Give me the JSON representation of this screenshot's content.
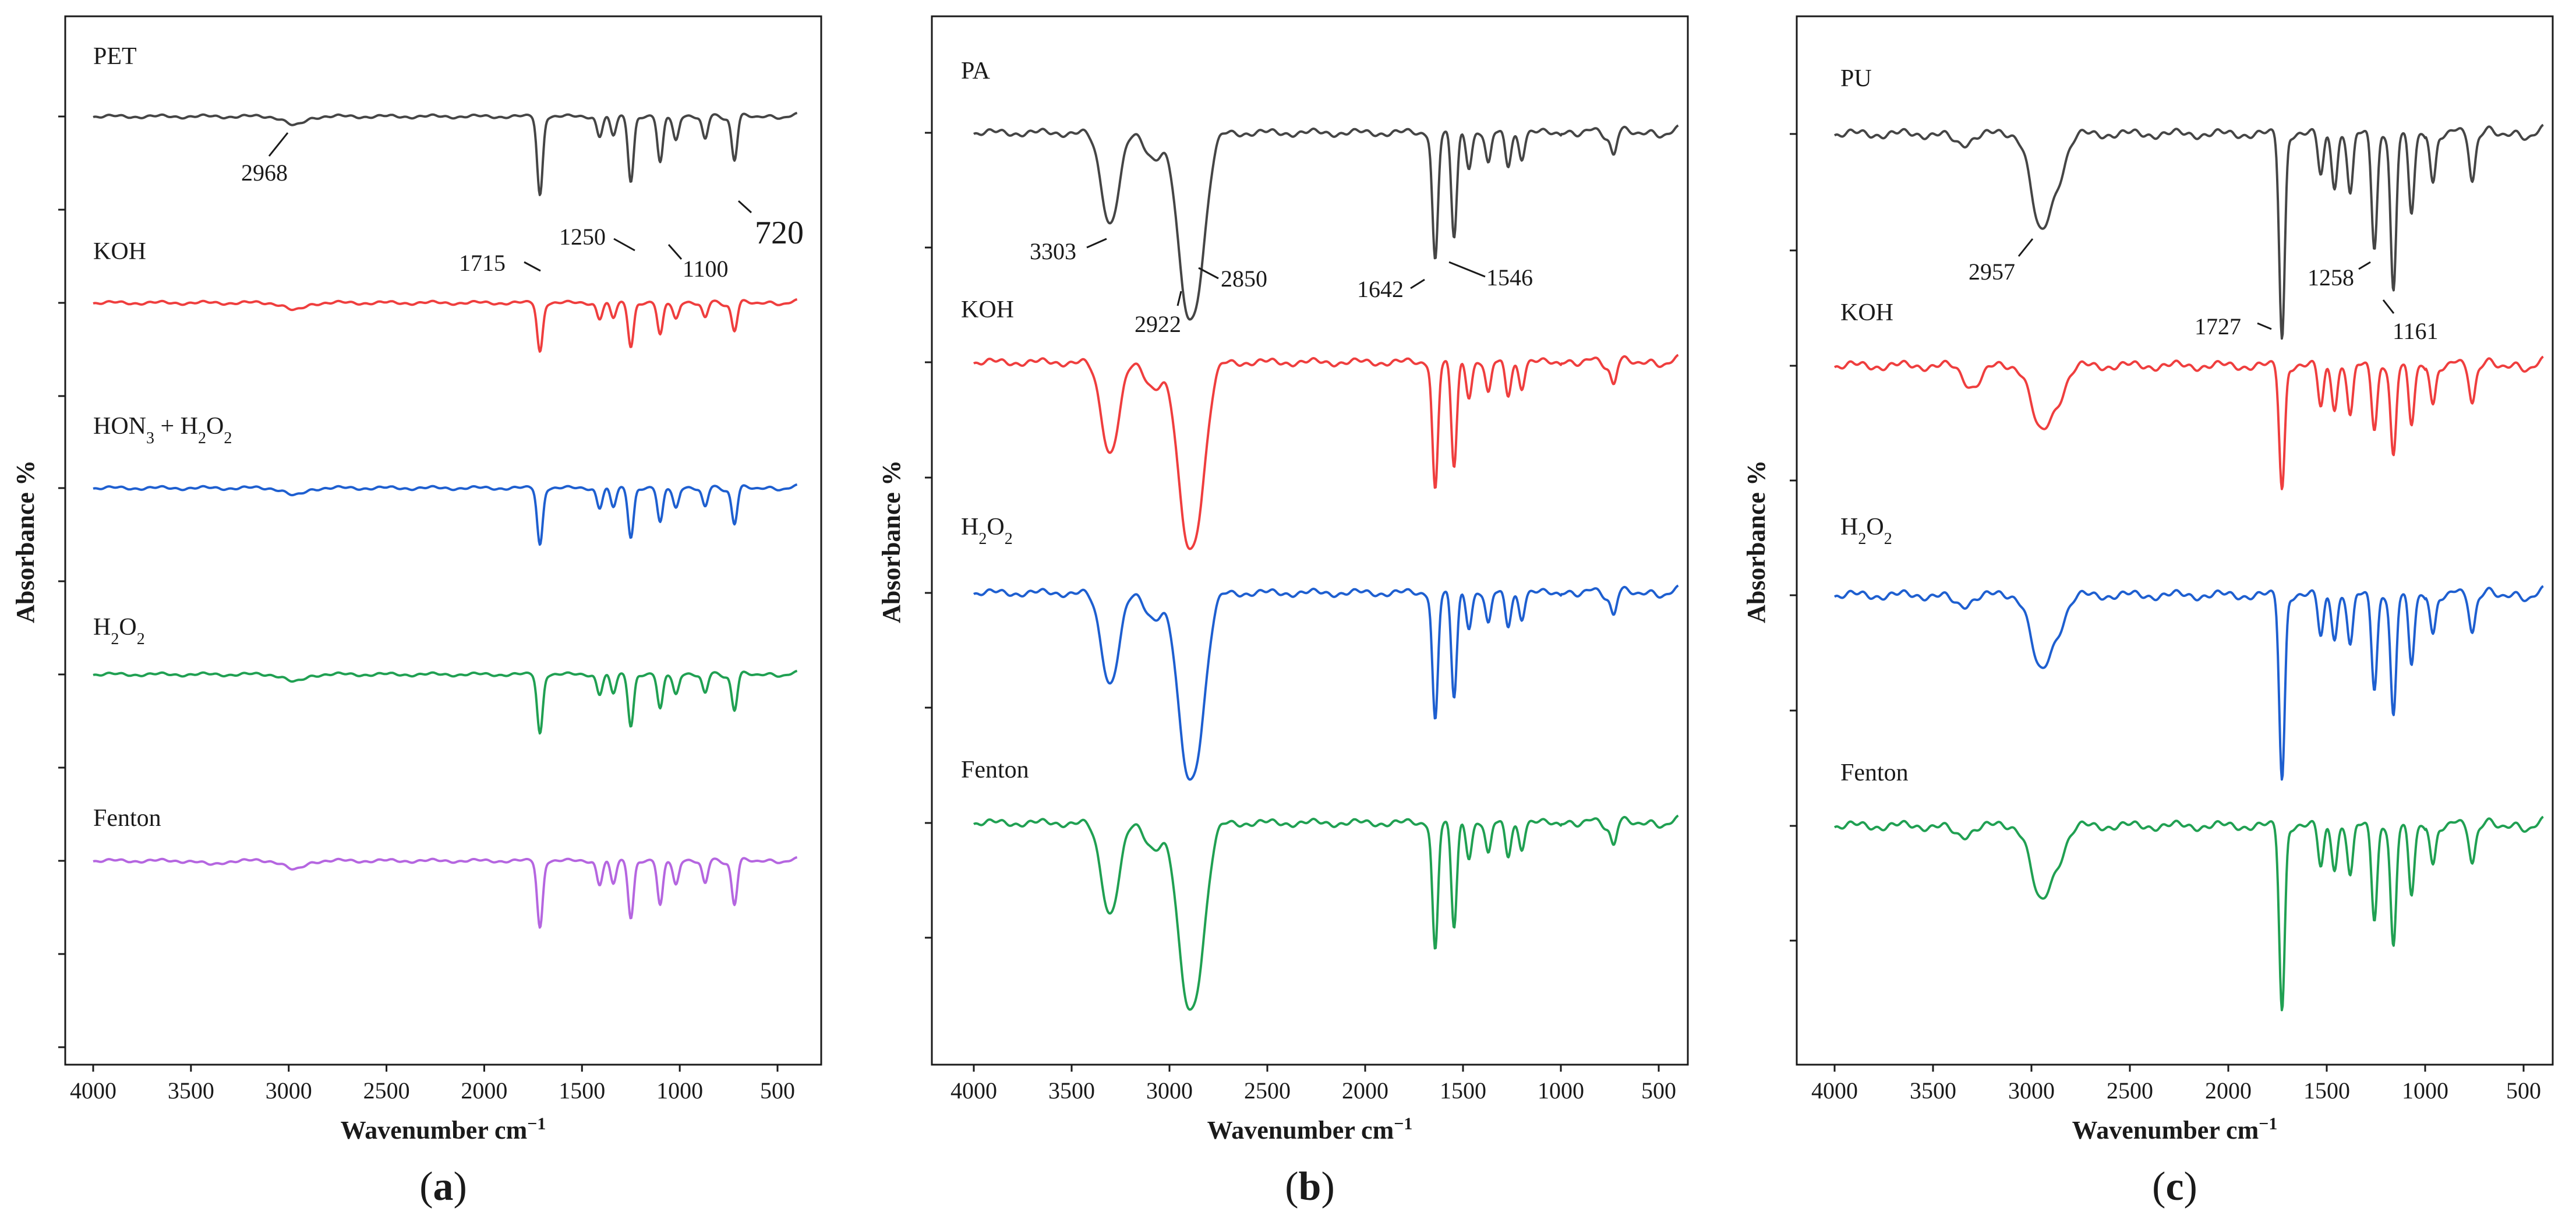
{
  "chart_data": [
    {
      "panel": "a",
      "letter": "a",
      "type": "line",
      "title": "",
      "xlabel": "Wavenumber  cm⁻¹",
      "ylabel": "Absorbance %",
      "xlim": [
        4000,
        400
      ],
      "xticks": [
        4000,
        3500,
        3000,
        2500,
        2000,
        1500,
        1000,
        500
      ],
      "series": [
        {
          "name": "PET",
          "color": "#454545",
          "peaks": [
            [
              2968,
              0.12
            ],
            [
              1715,
              1.0
            ],
            [
              1410,
              0.25
            ],
            [
              1340,
              0.25
            ],
            [
              1250,
              0.82
            ],
            [
              1100,
              0.6
            ],
            [
              1020,
              0.3
            ],
            [
              870,
              0.3
            ],
            [
              720,
              0.55
            ]
          ]
        },
        {
          "name": "KOH",
          "color": "#ef3e3e",
          "peaks": [
            [
              2968,
              0.1
            ],
            [
              1715,
              0.62
            ],
            [
              1410,
              0.2
            ],
            [
              1340,
              0.2
            ],
            [
              1250,
              0.55
            ],
            [
              1100,
              0.42
            ],
            [
              1020,
              0.2
            ],
            [
              870,
              0.2
            ],
            [
              720,
              0.35
            ]
          ]
        },
        {
          "name": "HON₃ + H₂O₂",
          "color": "#1e5fd0",
          "peaks": [
            [
              2968,
              0.1
            ],
            [
              1715,
              0.72
            ],
            [
              1410,
              0.25
            ],
            [
              1340,
              0.25
            ],
            [
              1250,
              0.62
            ],
            [
              1100,
              0.45
            ],
            [
              1020,
              0.25
            ],
            [
              870,
              0.25
            ],
            [
              720,
              0.45
            ]
          ]
        },
        {
          "name": "H₂O₂",
          "color": "#20a052",
          "peaks": [
            [
              2968,
              0.1
            ],
            [
              1715,
              0.75
            ],
            [
              1410,
              0.25
            ],
            [
              1340,
              0.25
            ],
            [
              1250,
              0.65
            ],
            [
              1100,
              0.45
            ],
            [
              1020,
              0.25
            ],
            [
              870,
              0.25
            ],
            [
              720,
              0.45
            ]
          ]
        },
        {
          "name": "Fenton",
          "color": "#b566e0",
          "peaks": [
            [
              3400,
              0.05
            ],
            [
              2968,
              0.12
            ],
            [
              1715,
              0.85
            ],
            [
              1410,
              0.3
            ],
            [
              1340,
              0.3
            ],
            [
              1250,
              0.72
            ],
            [
              1100,
              0.58
            ],
            [
              1020,
              0.3
            ],
            [
              870,
              0.3
            ],
            [
              720,
              0.55
            ]
          ]
        }
      ],
      "annotations": [
        {
          "text": "2968",
          "x": 2968
        },
        {
          "text": "1715",
          "x": 1715
        },
        {
          "text": "1250",
          "x": 1250
        },
        {
          "text": "1100",
          "x": 1100
        },
        {
          "text": "720",
          "x": 720
        }
      ]
    },
    {
      "panel": "b",
      "letter": "b",
      "type": "line",
      "title": "",
      "xlabel": "Wavenumber  cm⁻¹",
      "ylabel": "Absorbance %",
      "xlim": [
        4000,
        400
      ],
      "xticks": [
        4000,
        3500,
        3000,
        2500,
        2000,
        1500,
        1000,
        500
      ],
      "series": [
        {
          "name": "PA",
          "color": "#454545",
          "peaks": [
            [
              3303,
              0.55
            ],
            [
              3080,
              0.15
            ],
            [
              2922,
              0.85
            ],
            [
              2850,
              0.72
            ],
            [
              1642,
              0.78
            ],
            [
              1546,
              0.65
            ],
            [
              1470,
              0.2
            ],
            [
              1370,
              0.2
            ],
            [
              1270,
              0.2
            ],
            [
              1200,
              0.15
            ],
            [
              730,
              0.12
            ]
          ]
        },
        {
          "name": "KOH",
          "color": "#ef3e3e",
          "peaks": [
            [
              3303,
              0.55
            ],
            [
              3080,
              0.15
            ],
            [
              2922,
              0.85
            ],
            [
              2850,
              0.72
            ],
            [
              1642,
              0.78
            ],
            [
              1546,
              0.65
            ],
            [
              1470,
              0.2
            ],
            [
              1370,
              0.2
            ],
            [
              1270,
              0.2
            ],
            [
              1200,
              0.15
            ],
            [
              730,
              0.12
            ]
          ]
        },
        {
          "name": "H₂O₂",
          "color": "#1e5fd0",
          "peaks": [
            [
              3303,
              0.55
            ],
            [
              3080,
              0.15
            ],
            [
              2922,
              0.85
            ],
            [
              2850,
              0.72
            ],
            [
              1642,
              0.78
            ],
            [
              1546,
              0.65
            ],
            [
              1470,
              0.2
            ],
            [
              1370,
              0.2
            ],
            [
              1270,
              0.2
            ],
            [
              1200,
              0.15
            ],
            [
              730,
              0.12
            ]
          ]
        },
        {
          "name": "Fenton",
          "color": "#20a052",
          "peaks": [
            [
              3303,
              0.55
            ],
            [
              3080,
              0.15
            ],
            [
              2922,
              0.85
            ],
            [
              2850,
              0.72
            ],
            [
              1642,
              0.78
            ],
            [
              1546,
              0.65
            ],
            [
              1470,
              0.2
            ],
            [
              1370,
              0.2
            ],
            [
              1270,
              0.2
            ],
            [
              1200,
              0.15
            ],
            [
              730,
              0.12
            ]
          ]
        }
      ],
      "annotations": [
        {
          "text": "3303",
          "x": 3303
        },
        {
          "text": "2922",
          "x": 2922
        },
        {
          "text": "2850",
          "x": 2850
        },
        {
          "text": "1642",
          "x": 1642
        },
        {
          "text": "1546",
          "x": 1546
        }
      ]
    },
    {
      "panel": "c",
      "letter": "c",
      "type": "line",
      "title": "",
      "xlabel": "Wavenumber  cm⁻¹",
      "ylabel": "Absorbance %",
      "xlim": [
        4000,
        400
      ],
      "xticks": [
        4000,
        3500,
        3000,
        2500,
        2000,
        1500,
        1000,
        500
      ],
      "series": [
        {
          "name": "PU",
          "color": "#454545",
          "peaks": [
            [
              3360,
              0.05
            ],
            [
              2957,
              0.45
            ],
            [
              2870,
              0.2
            ],
            [
              1727,
              1.0
            ],
            [
              1530,
              0.2
            ],
            [
              1460,
              0.25
            ],
            [
              1380,
              0.3
            ],
            [
              1258,
              0.55
            ],
            [
              1161,
              0.78
            ],
            [
              1070,
              0.4
            ],
            [
              960,
              0.25
            ],
            [
              760,
              0.2
            ]
          ]
        },
        {
          "name": "KOH",
          "color": "#ef3e3e",
          "peaks": [
            [
              3300,
              0.1
            ],
            [
              2957,
              0.3
            ],
            [
              2870,
              0.15
            ],
            [
              1727,
              0.6
            ],
            [
              1530,
              0.2
            ],
            [
              1460,
              0.2
            ],
            [
              1380,
              0.25
            ],
            [
              1258,
              0.3
            ],
            [
              1161,
              0.45
            ],
            [
              1070,
              0.3
            ],
            [
              960,
              0.2
            ],
            [
              760,
              0.15
            ]
          ]
        },
        {
          "name": "H₂O₂",
          "color": "#1e5fd0",
          "peaks": [
            [
              3360,
              0.05
            ],
            [
              2957,
              0.35
            ],
            [
              2870,
              0.15
            ],
            [
              1727,
              0.9
            ],
            [
              1530,
              0.2
            ],
            [
              1460,
              0.2
            ],
            [
              1380,
              0.25
            ],
            [
              1258,
              0.45
            ],
            [
              1161,
              0.6
            ],
            [
              1070,
              0.35
            ],
            [
              960,
              0.2
            ],
            [
              760,
              0.15
            ]
          ]
        },
        {
          "name": "Fenton",
          "color": "#20a052",
          "peaks": [
            [
              3360,
              0.05
            ],
            [
              2957,
              0.35
            ],
            [
              2870,
              0.15
            ],
            [
              1727,
              0.9
            ],
            [
              1530,
              0.2
            ],
            [
              1460,
              0.2
            ],
            [
              1380,
              0.25
            ],
            [
              1258,
              0.45
            ],
            [
              1161,
              0.6
            ],
            [
              1070,
              0.35
            ],
            [
              960,
              0.2
            ],
            [
              760,
              0.15
            ]
          ]
        }
      ],
      "annotations": [
        {
          "text": "2957",
          "x": 2957
        },
        {
          "text": "1727",
          "x": 1727
        },
        {
          "text": "1258",
          "x": 1258
        },
        {
          "text": "1161",
          "x": 1161
        }
      ]
    }
  ]
}
